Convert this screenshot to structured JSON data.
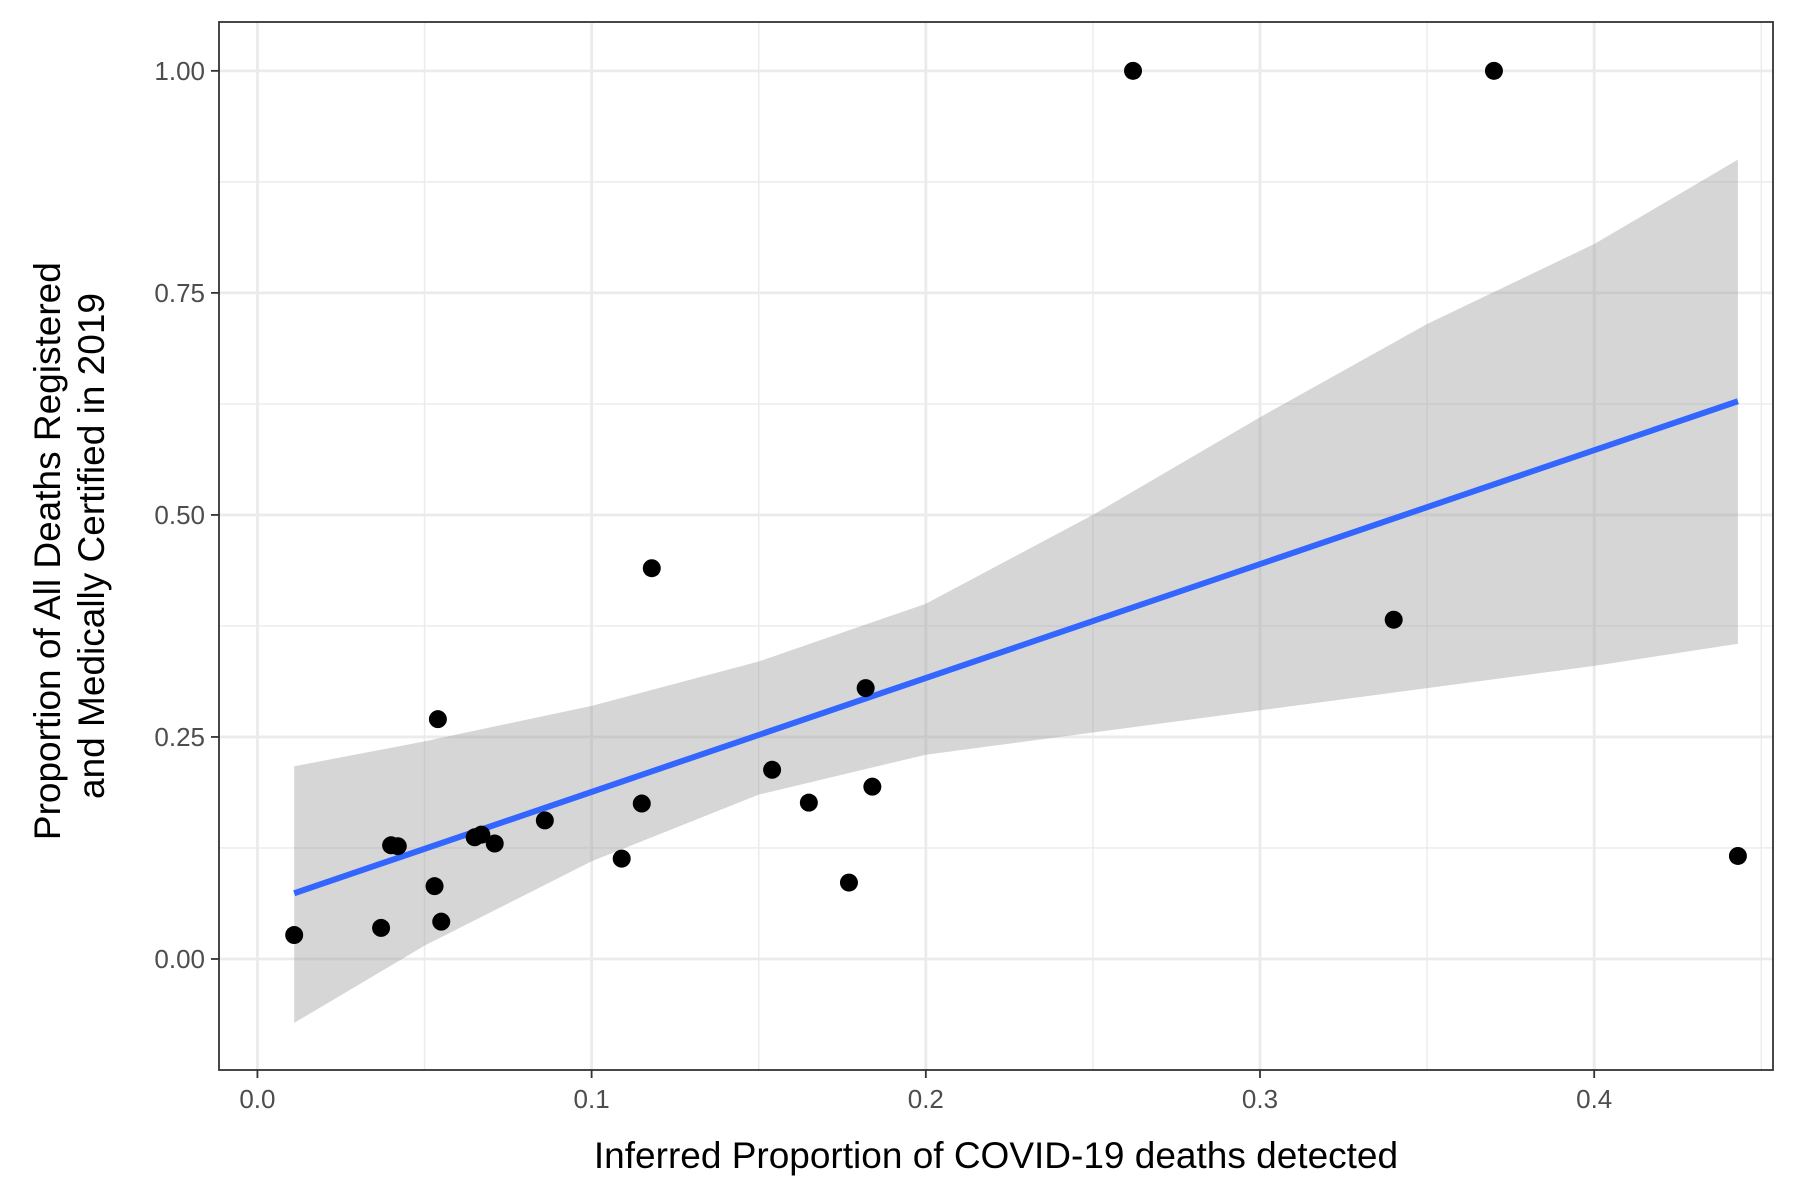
{
  "chart_data": {
    "type": "scatter",
    "title": "",
    "xlabel": "Inferred Proportion of COVID-19 deaths detected",
    "ylabel_lines": [
      "Proportion of All Deaths Registered",
      "and Medically Certified in 2019"
    ],
    "xlim": [
      -0.0115,
      0.4535
    ],
    "ylim": [
      -0.125,
      1.055
    ],
    "x_ticks": [
      {
        "value": 0.0,
        "label": "0.0"
      },
      {
        "value": 0.1,
        "label": "0.1"
      },
      {
        "value": 0.2,
        "label": "0.2"
      },
      {
        "value": 0.3,
        "label": "0.3"
      },
      {
        "value": 0.4,
        "label": "0.4"
      }
    ],
    "y_ticks": [
      {
        "value": 0.0,
        "label": "0.00"
      },
      {
        "value": 0.25,
        "label": "0.25"
      },
      {
        "value": 0.5,
        "label": "0.50"
      },
      {
        "value": 0.75,
        "label": "0.75"
      },
      {
        "value": 1.0,
        "label": "1.00"
      }
    ],
    "grid": true,
    "x_minor_ticks": [
      0.05,
      0.15,
      0.25,
      0.35,
      0.45
    ],
    "y_minor_ticks": [
      0.125,
      0.375,
      0.625,
      0.875
    ],
    "points": [
      {
        "x": 0.011,
        "y": 0.027
      },
      {
        "x": 0.037,
        "y": 0.035
      },
      {
        "x": 0.04,
        "y": 0.128
      },
      {
        "x": 0.042,
        "y": 0.127
      },
      {
        "x": 0.053,
        "y": 0.082
      },
      {
        "x": 0.054,
        "y": 0.27
      },
      {
        "x": 0.055,
        "y": 0.042
      },
      {
        "x": 0.065,
        "y": 0.137
      },
      {
        "x": 0.067,
        "y": 0.14
      },
      {
        "x": 0.071,
        "y": 0.13
      },
      {
        "x": 0.086,
        "y": 0.156
      },
      {
        "x": 0.109,
        "y": 0.113
      },
      {
        "x": 0.115,
        "y": 0.175
      },
      {
        "x": 0.118,
        "y": 0.44
      },
      {
        "x": 0.154,
        "y": 0.213
      },
      {
        "x": 0.165,
        "y": 0.176
      },
      {
        "x": 0.177,
        "y": 0.086
      },
      {
        "x": 0.182,
        "y": 0.305
      },
      {
        "x": 0.184,
        "y": 0.194
      },
      {
        "x": 0.262,
        "y": 1.0
      },
      {
        "x": 0.34,
        "y": 0.382
      },
      {
        "x": 0.37,
        "y": 1.0
      },
      {
        "x": 0.443,
        "y": 0.116
      }
    ],
    "fit_line": {
      "x": [
        0.011,
        0.443
      ],
      "y": [
        0.074,
        0.628
      ],
      "color": "#3366ff"
    },
    "confidence_band": {
      "x": [
        0.011,
        0.05,
        0.1,
        0.15,
        0.2,
        0.25,
        0.3,
        0.35,
        0.4,
        0.443
      ],
      "lower": [
        -0.072,
        0.015,
        0.11,
        0.185,
        0.23,
        0.255,
        0.28,
        0.305,
        0.33,
        0.355
      ],
      "upper": [
        0.217,
        0.245,
        0.285,
        0.335,
        0.4,
        0.5,
        0.61,
        0.715,
        0.805,
        0.9
      ],
      "color": "#999999"
    },
    "point_color": "#000000",
    "panel_border_color": "#333333",
    "grid_color": "#ebebeb"
  }
}
